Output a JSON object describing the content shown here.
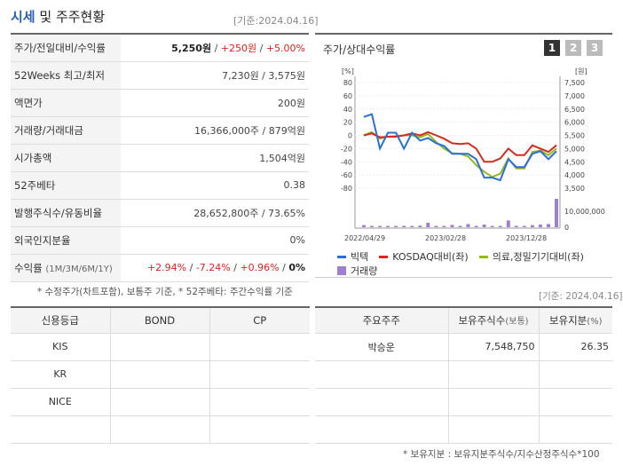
{
  "header": {
    "title_main": "시세",
    "title_rest": "및 주주현황",
    "date": "[기준:2024.04.16]"
  },
  "info_rows": [
    {
      "key": "주가/전일대비/수익률",
      "v1": "5,250원",
      "sep1": " / ",
      "v2": "+250원",
      "sep2": " / ",
      "v3": "+5.00%"
    },
    {
      "key": "52Weeks 최고/최저",
      "value": "7,230원 / 3,575원"
    },
    {
      "key": "액면가",
      "value": "200원"
    },
    {
      "key": "거래량/거래대금",
      "value": "16,366,000주 / 879억원"
    },
    {
      "key": "시가총액",
      "value": "1,504억원"
    },
    {
      "key": "52주베타",
      "value": "0.38"
    },
    {
      "key": "발행주식수/유동비율",
      "value": "28,652,800주 / 73.65%"
    },
    {
      "key": "외국인지분율",
      "value": "0%"
    },
    {
      "key": "수익률",
      "key_sub": "(1M/3M/6M/1Y)",
      "r1": "+2.94%",
      "r2": "-7.24%",
      "r3": "+0.96%",
      "r4": "0%",
      "sep": " / "
    }
  ],
  "notes": {
    "left": "* 수정주가(차트포함), 보통주 기준, * 52주베타: 주간수익률 기준",
    "right_date": "[기준: 2024.04.16]",
    "bottom": "* 보유지분 : 보유지분주식수/지수산정주식수*100"
  },
  "chart": {
    "title": "주가/상대수익률",
    "tabs": [
      "1",
      "2",
      "3"
    ],
    "active_tab": "1",
    "left_unit": "[%]",
    "right_unit": "[원]",
    "left_ticks": [
      "80",
      "60",
      "40",
      "20",
      "0",
      "-20",
      "-40",
      "-60",
      "-80"
    ],
    "right_ticks": [
      "7,500",
      "7,000",
      "6,500",
      "6,000",
      "5,500",
      "5,000",
      "4,500",
      "4,000",
      "3,500"
    ],
    "volume_tick": "10,000,000",
    "volume_zero": "0",
    "x_ticks": [
      "2022/04/29",
      "2023/02/28",
      "2023/12/28"
    ],
    "legend": [
      "빅텍",
      "KOSDAQ대비(좌)",
      "의료,정밀기기대비(좌)",
      "거래량"
    ],
    "colors": {
      "price": "#2b6fd6",
      "kosdaq": "#d62a1e",
      "medical": "#95b91c",
      "volume": "#a07fd0"
    }
  },
  "chart_data": {
    "type": "line",
    "x_range": [
      "2022/04/29",
      "2024/04/16"
    ],
    "ylim_left": [
      -80,
      80
    ],
    "ylim_right": [
      3500,
      7500
    ],
    "series": [
      {
        "name": "빅텍",
        "axis": "right",
        "values": [
          6200,
          6300,
          5000,
          5600,
          5600,
          5000,
          5600,
          5300,
          5400,
          5200,
          5100,
          4800,
          4800,
          4800,
          4600,
          3900,
          3900,
          3800,
          4600,
          4300,
          4300,
          4800,
          4900,
          4600,
          4900
        ]
      },
      {
        "name": "KOSDAQ대비(좌)",
        "axis": "left",
        "values": [
          0,
          3,
          -3,
          -2,
          -2,
          0,
          3,
          0,
          5,
          0,
          -5,
          -12,
          -13,
          -12,
          -20,
          -40,
          -40,
          -35,
          -20,
          -30,
          -30,
          -15,
          -20,
          -25,
          -15
        ]
      },
      {
        "name": "의료,정밀기기대비(좌)",
        "axis": "left",
        "values": [
          0,
          5,
          -5,
          -2,
          -1,
          0,
          0,
          -3,
          2,
          -10,
          -20,
          -27,
          -28,
          -32,
          -45,
          -55,
          -63,
          -58,
          -35,
          -50,
          -50,
          -25,
          -23,
          -30,
          -20
        ]
      },
      {
        "name": "거래량",
        "axis": "volume",
        "values": [
          1200000,
          600000,
          400000,
          700000,
          500000,
          800000,
          600000,
          900000,
          2500000,
          700000,
          400000,
          1300000,
          500000,
          1800000,
          600000,
          1500000,
          700000,
          400000,
          3800000,
          800000,
          600000,
          1200000,
          1500000,
          1800000,
          16000000
        ]
      }
    ]
  },
  "credit": {
    "headers": [
      "신용등급",
      "BOND",
      "CP"
    ],
    "rows": [
      [
        "KIS",
        "",
        ""
      ],
      [
        "KR",
        "",
        ""
      ],
      [
        "NICE",
        "",
        ""
      ],
      [
        "",
        "",
        ""
      ]
    ]
  },
  "holders": {
    "headers": [
      "주요주주",
      "보유주식수",
      "(보통)",
      "보유지분",
      "(%)"
    ],
    "rows": [
      {
        "name": "박승운",
        "shares": "7,548,750",
        "pct": "26.35"
      },
      {
        "name": "",
        "shares": "",
        "pct": ""
      },
      {
        "name": "",
        "shares": "",
        "pct": ""
      },
      {
        "name": "",
        "shares": "",
        "pct": ""
      }
    ]
  }
}
